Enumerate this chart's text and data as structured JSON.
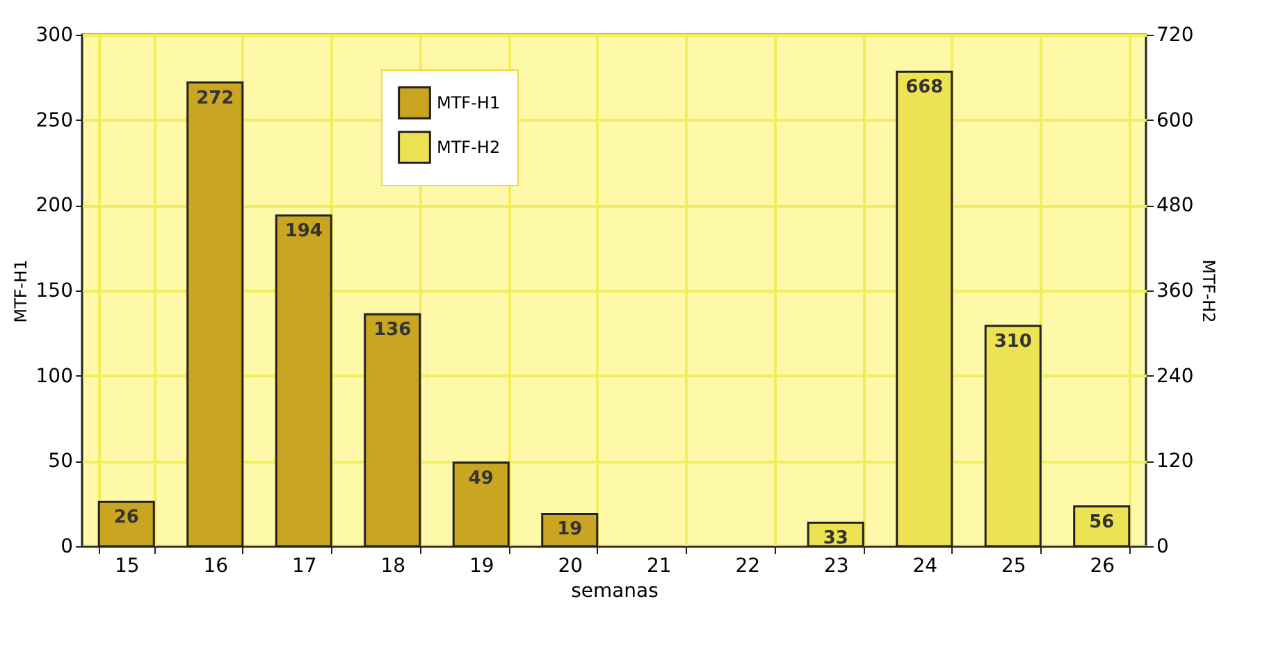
{
  "chart_data": {
    "type": "bar",
    "xlabel": "semanas",
    "ylabel": "MTF-H1",
    "y2label": "MTF-H2",
    "categories": [
      "15",
      "16",
      "17",
      "18",
      "19",
      "20",
      "21",
      "22",
      "23",
      "24",
      "25",
      "26"
    ],
    "series": [
      {
        "name": "MTF-H1",
        "color": "#c9a521",
        "values": [
          26,
          272,
          194,
          136,
          49,
          19,
          null,
          null,
          null,
          null,
          null,
          null
        ]
      },
      {
        "name": "MTF-H2",
        "color": "#ede252",
        "axis": "y2",
        "values": [
          null,
          null,
          null,
          null,
          null,
          null,
          null,
          null,
          33,
          668,
          310,
          56
        ]
      }
    ],
    "ylim": [
      0,
      300
    ],
    "yticks": [
      0,
      50,
      100,
      150,
      200,
      250,
      300
    ],
    "y2lim": [
      0,
      720
    ],
    "y2ticks": [
      0,
      120,
      240,
      360,
      480,
      600,
      720
    ],
    "data_labels": true,
    "grid": true,
    "legend": "top left"
  }
}
